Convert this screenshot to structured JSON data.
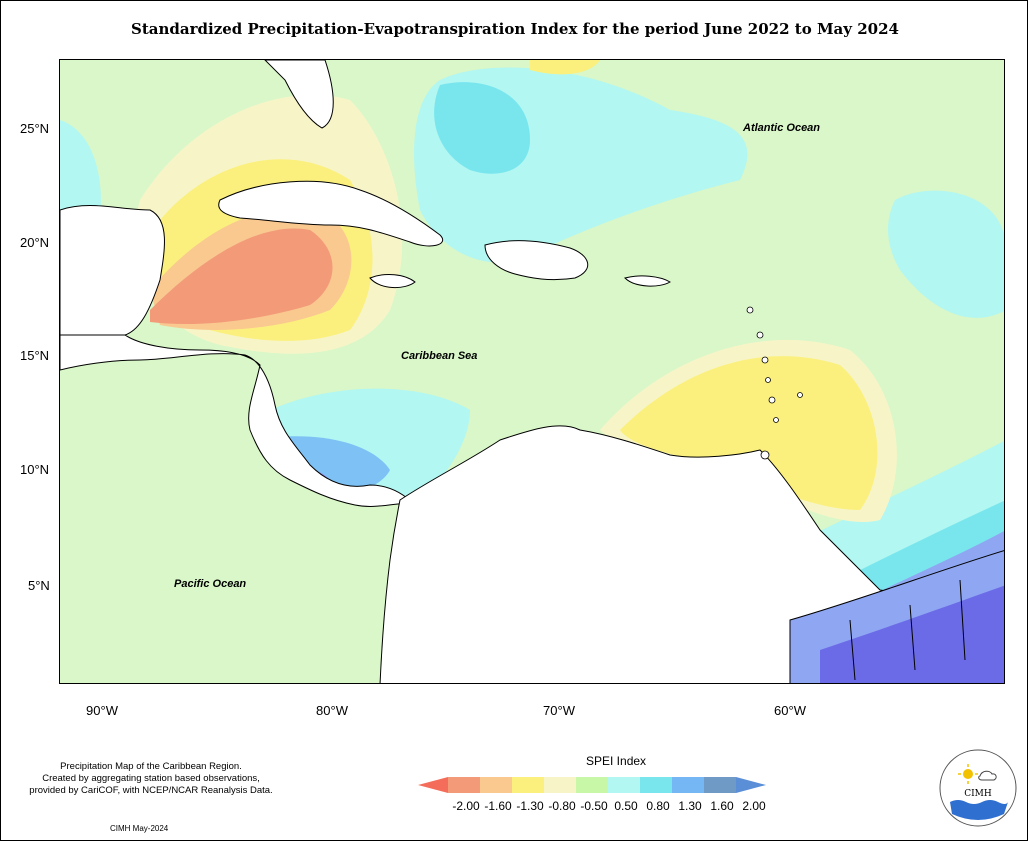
{
  "title": "Standardized Precipitation-Evapotranspiration Index for the period June 2022 to May 2024",
  "lat_ticks": [
    "25°N",
    "20°N",
    "15°N",
    "10°N",
    "5°N"
  ],
  "lon_ticks": [
    "90°W",
    "80°W",
    "70°W",
    "60°W"
  ],
  "labels": {
    "atlantic": "Atlantic Ocean",
    "caribbean": "Caribbean Sea",
    "pacific": "Pacific Ocean"
  },
  "caption": {
    "line1": "Precipitation Map of the Caribbean Region.",
    "line2": "Created by aggregating station based observations,",
    "line3": "provided by CariCOF, with NCEP/NCAR Reanalysis Data."
  },
  "credit": "CIMH May-2024",
  "legend": {
    "title": "SPEI Index",
    "values": [
      "-2.00",
      "-1.60",
      "-1.30",
      "-0.80",
      "-0.50",
      "0.50",
      "0.80",
      "1.30",
      "1.60",
      "2.00"
    ],
    "colors": [
      "#f46d5a",
      "#f39a78",
      "#f9c990",
      "#fbf07d",
      "#f7f5c8",
      "#c8f7a8",
      "#b2f7f2",
      "#79e6ee",
      "#74b7f4",
      "#6f9ac6",
      "#5a8fd8"
    ]
  },
  "logo_text": "CIMH",
  "palette": {
    "neutral": "#d9f7c8",
    "dry_light": "#fbf07d",
    "dry_mid": "#f9c990",
    "dry_strong": "#f39a78",
    "wet_light": "#b2f7f2",
    "wet_mid": "#79e6ee",
    "wet_strong": "#7b7cf0",
    "wet_extreme": "#6b6be8"
  }
}
